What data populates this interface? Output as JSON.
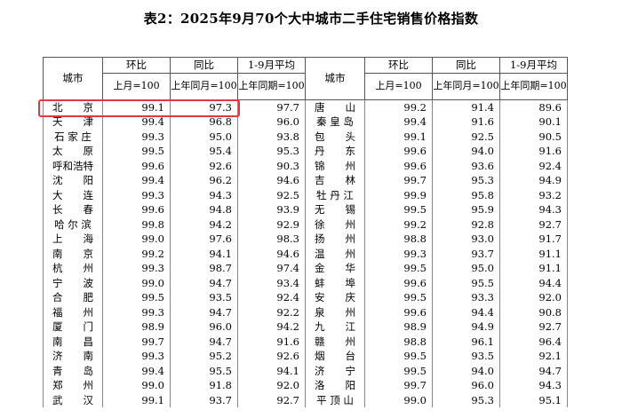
{
  "title": "表2：2025年9月70个大中城市二手住宅销售价格指数",
  "header": {
    "city": "城市",
    "mom": "环比",
    "yoy": "同比",
    "avg": "1-9月平均",
    "mom_base": "上月=100",
    "yoy_base": "上年同月=100",
    "avg_base": "上年同期=100"
  },
  "rows": [
    {
      "l": {
        "city": "北　　京",
        "mom": "99.1",
        "yoy": "97.3",
        "avg": "97.7"
      },
      "r": {
        "city": "唐　　山",
        "mom": "99.2",
        "yoy": "91.4",
        "avg": "89.6"
      }
    },
    {
      "l": {
        "city": "天　　津",
        "mom": "99.4",
        "yoy": "96.8",
        "avg": "96.0"
      },
      "r": {
        "city": "秦 皇 岛",
        "mom": "99.4",
        "yoy": "91.6",
        "avg": "90.1"
      }
    },
    {
      "l": {
        "city": "石 家 庄",
        "mom": "99.3",
        "yoy": "95.0",
        "avg": "93.8"
      },
      "r": {
        "city": "包　　头",
        "mom": "99.1",
        "yoy": "92.5",
        "avg": "90.5"
      }
    },
    {
      "l": {
        "city": "太　　原",
        "mom": "99.5",
        "yoy": "95.4",
        "avg": "95.3"
      },
      "r": {
        "city": "丹　　东",
        "mom": "99.6",
        "yoy": "94.0",
        "avg": "91.6"
      }
    },
    {
      "l": {
        "city": "呼和浩特",
        "mom": "99.6",
        "yoy": "92.6",
        "avg": "90.3"
      },
      "r": {
        "city": "锦　　州",
        "mom": "99.6",
        "yoy": "93.6",
        "avg": "92.4"
      }
    },
    {
      "l": {
        "city": "沈　　阳",
        "mom": "99.4",
        "yoy": "96.2",
        "avg": "94.6"
      },
      "r": {
        "city": "吉　　林",
        "mom": "99.7",
        "yoy": "95.3",
        "avg": "94.9"
      }
    },
    {
      "l": {
        "city": "大　　连",
        "mom": "99.3",
        "yoy": "94.3",
        "avg": "92.5"
      },
      "r": {
        "city": "牡 丹 江",
        "mom": "99.9",
        "yoy": "95.8",
        "avg": "93.2"
      }
    },
    {
      "l": {
        "city": "长　　春",
        "mom": "99.6",
        "yoy": "94.8",
        "avg": "93.9"
      },
      "r": {
        "city": "无　　锡",
        "mom": "99.5",
        "yoy": "95.9",
        "avg": "94.3"
      }
    },
    {
      "l": {
        "city": "哈 尔 滨",
        "mom": "99.8",
        "yoy": "94.2",
        "avg": "92.9"
      },
      "r": {
        "city": "徐　　州",
        "mom": "99.2",
        "yoy": "92.8",
        "avg": "92.7"
      }
    },
    {
      "l": {
        "city": "上　　海",
        "mom": "99.0",
        "yoy": "97.6",
        "avg": "98.3"
      },
      "r": {
        "city": "扬　　州",
        "mom": "98.8",
        "yoy": "93.0",
        "avg": "91.7"
      }
    },
    {
      "l": {
        "city": "南　　京",
        "mom": "99.2",
        "yoy": "94.1",
        "avg": "94.6"
      },
      "r": {
        "city": "温　　州",
        "mom": "99.3",
        "yoy": "93.7",
        "avg": "91.1"
      }
    },
    {
      "l": {
        "city": "杭　　州",
        "mom": "99.3",
        "yoy": "98.7",
        "avg": "97.4"
      },
      "r": {
        "city": "金　　华",
        "mom": "99.5",
        "yoy": "95.0",
        "avg": "91.1"
      }
    },
    {
      "l": {
        "city": "宁　　波",
        "mom": "99.0",
        "yoy": "94.7",
        "avg": "93.4"
      },
      "r": {
        "city": "蚌　　埠",
        "mom": "99.6",
        "yoy": "95.5",
        "avg": "94.4"
      }
    },
    {
      "l": {
        "city": "合　　肥",
        "mom": "99.5",
        "yoy": "93.5",
        "avg": "92.4"
      },
      "r": {
        "city": "安　　庆",
        "mom": "99.5",
        "yoy": "93.3",
        "avg": "92.0"
      }
    },
    {
      "l": {
        "city": "福　　州",
        "mom": "99.3",
        "yoy": "94.7",
        "avg": "92.2"
      },
      "r": {
        "city": "泉　　州",
        "mom": "99.6",
        "yoy": "94.4",
        "avg": "90.8"
      }
    },
    {
      "l": {
        "city": "厦　　门",
        "mom": "98.9",
        "yoy": "96.0",
        "avg": "94.2"
      },
      "r": {
        "city": "九　　江",
        "mom": "98.9",
        "yoy": "94.9",
        "avg": "92.7"
      }
    },
    {
      "l": {
        "city": "南　　昌",
        "mom": "99.7",
        "yoy": "94.7",
        "avg": "91.6"
      },
      "r": {
        "city": "赣　　州",
        "mom": "98.8",
        "yoy": "96.1",
        "avg": "96.4"
      }
    },
    {
      "l": {
        "city": "济　　南",
        "mom": "99.3",
        "yoy": "95.2",
        "avg": "92.6"
      },
      "r": {
        "city": "烟　　台",
        "mom": "99.5",
        "yoy": "93.5",
        "avg": "92.1"
      }
    },
    {
      "l": {
        "city": "青　　岛",
        "mom": "99.4",
        "yoy": "95.5",
        "avg": "94.1"
      },
      "r": {
        "city": "济　　宁",
        "mom": "99.5",
        "yoy": "94.0",
        "avg": "94.7"
      }
    },
    {
      "l": {
        "city": "郑　　州",
        "mom": "99.0",
        "yoy": "91.8",
        "avg": "92.0"
      },
      "r": {
        "city": "洛　　阳",
        "mom": "99.7",
        "yoy": "96.0",
        "avg": "94.3"
      }
    },
    {
      "l": {
        "city": "武　　汉",
        "mom": "99.1",
        "yoy": "93.7",
        "avg": "92.7"
      },
      "r": {
        "city": "平 顶 山",
        "mom": "99.0",
        "yoy": "95.3",
        "avg": "95.1"
      }
    }
  ]
}
